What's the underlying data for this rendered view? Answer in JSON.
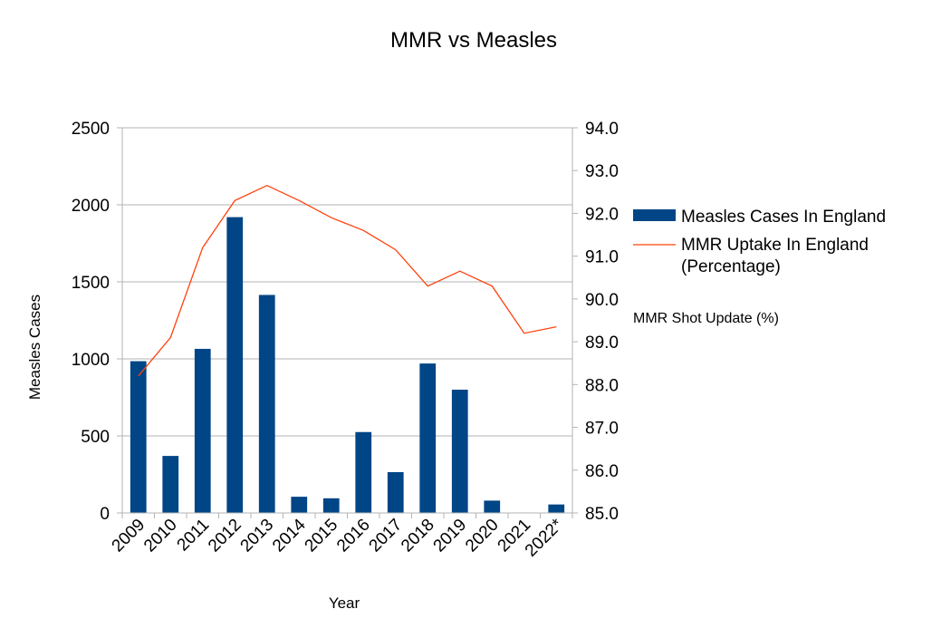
{
  "chart_data": {
    "type": "bar",
    "title": "MMR vs Measles",
    "xlabel": "Year",
    "ylabel": "Measles Cases",
    "y2label": "MMR Shot Update (%)",
    "categories": [
      "2009",
      "2010",
      "2011",
      "2012",
      "2013",
      "2014",
      "2015",
      "2016",
      "2017",
      "2018",
      "2019",
      "2020",
      "2021",
      "2022*"
    ],
    "ylim": [
      0,
      2500
    ],
    "yticks": [
      0,
      500,
      1000,
      1500,
      2000,
      2500
    ],
    "y2lim": [
      85.0,
      94.0
    ],
    "y2ticks": [
      "85.0",
      "86.0",
      "87.0",
      "88.0",
      "89.0",
      "90.0",
      "91.0",
      "92.0",
      "93.0",
      "94.0"
    ],
    "grid": true,
    "legend_position": "right",
    "series": [
      {
        "name": "Measles Cases In England",
        "type": "bar",
        "axis": "left",
        "color": "#004586",
        "values": [
          985,
          370,
          1065,
          1920,
          1415,
          105,
          95,
          525,
          265,
          970,
          800,
          80,
          3,
          55
        ]
      },
      {
        "name": "MMR Uptake In England (Percentage)",
        "legend_lines": [
          "MMR Uptake In England",
          "(Percentage)"
        ],
        "type": "line",
        "axis": "right",
        "color": "#ff420e",
        "values": [
          88.2,
          89.1,
          91.2,
          92.3,
          92.65,
          92.3,
          91.9,
          91.6,
          91.15,
          90.3,
          90.65,
          90.3,
          89.2,
          89.35
        ]
      }
    ]
  }
}
